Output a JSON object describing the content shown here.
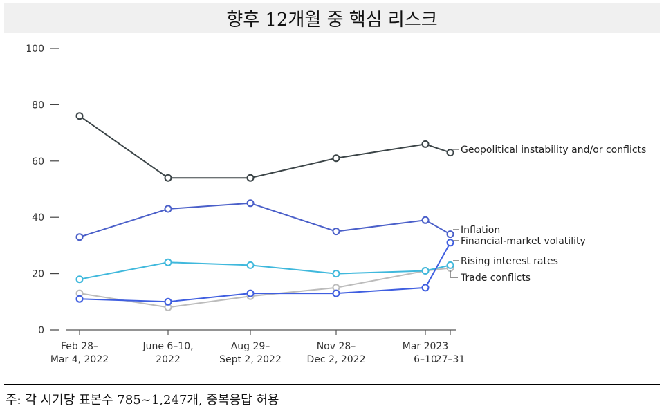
{
  "title": "향후 12개월 중 핵심 리스크",
  "footnote": "주: 각 시기당 표본수 785~1,247개, 중복응답 허용",
  "chart_data": {
    "type": "line",
    "ylim": [
      0,
      100
    ],
    "yticks": [
      "100",
      "80",
      "60",
      "40",
      "20",
      "0"
    ],
    "grid": false,
    "legend": "end-of-line labels",
    "categories": [
      [
        "Feb 28–",
        "Mar 4, 2022"
      ],
      [
        "June 6–10,",
        "2022"
      ],
      [
        "Aug 29–",
        "Sept 2, 2022"
      ],
      [
        "Nov 28–",
        "Dec 2, 2022"
      ],
      [
        "Mar 2023",
        "6–10"
      ],
      [
        "",
        "27–31"
      ]
    ],
    "series": [
      {
        "name": "Geopolitical instability and/or conflicts",
        "color": "#3b4447",
        "values": [
          76,
          54,
          54,
          61,
          66,
          63
        ]
      },
      {
        "name": "Inflation",
        "color": "#4a5fc9",
        "values": [
          33,
          43,
          45,
          35,
          39,
          34
        ]
      },
      {
        "name": "Financial-market volatility",
        "color": "#3f5ee0",
        "values": [
          11,
          10,
          13,
          13,
          15,
          31
        ]
      },
      {
        "name": "Rising interest rates",
        "color": "#3fb8dc",
        "values": [
          18,
          24,
          23,
          20,
          21,
          23
        ]
      },
      {
        "name": "Trade conflicts",
        "color": "#bcbcbc",
        "values": [
          13,
          8,
          12,
          15,
          21,
          22
        ]
      }
    ]
  }
}
